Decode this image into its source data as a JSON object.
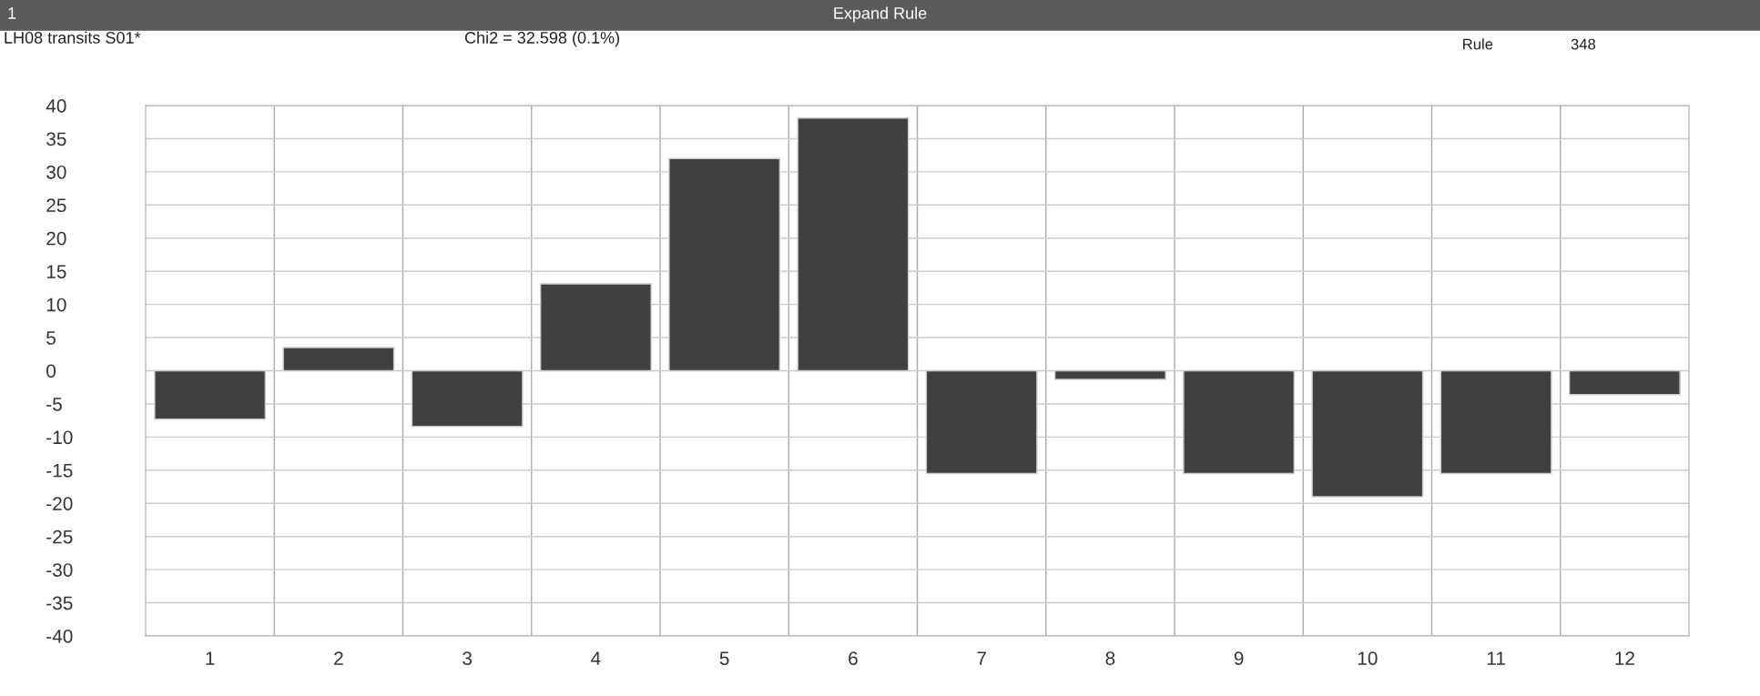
{
  "chart_data": {
    "type": "bar",
    "title": "Expand Rule",
    "annotations": [
      "1",
      "LH08 transits S01*",
      "Chi2 = 32.598 (0.1%)",
      "Rule",
      "348"
    ],
    "categories": [
      "1",
      "2",
      "3",
      "4",
      "5",
      "6",
      "7",
      "8",
      "9",
      "10",
      "11",
      "12"
    ],
    "values": [
      -7.3,
      3.5,
      -8.4,
      13.1,
      32.0,
      38.1,
      -15.5,
      -1.3,
      -15.5,
      -19.0,
      -15.5,
      -3.6
    ],
    "color": "#404040",
    "ylim": [
      -40,
      40
    ],
    "yticks": [
      -40,
      -35,
      -30,
      -25,
      -20,
      -15,
      -10,
      -5,
      0,
      5,
      10,
      15,
      20,
      25,
      30,
      35,
      40
    ],
    "grid": true
  }
}
